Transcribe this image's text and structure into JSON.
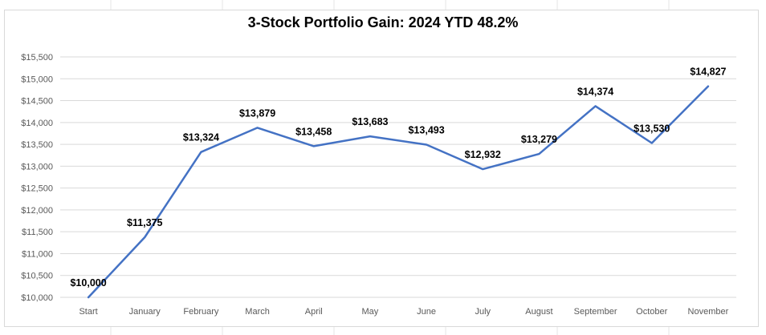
{
  "chart_data": {
    "type": "line",
    "title": "3-Stock Portfolio Gain: 2024 YTD 48.2%",
    "xlabel": "",
    "ylabel": "",
    "categories": [
      "Start",
      "January",
      "February",
      "March",
      "April",
      "May",
      "June",
      "July",
      "August",
      "September",
      "October",
      "November"
    ],
    "series": [
      {
        "values": [
          10000,
          11375,
          13324,
          13879,
          13458,
          13683,
          13493,
          12932,
          13279,
          14374,
          13530,
          14827
        ],
        "labels": [
          "$10,000",
          "$11,375",
          "$13,324",
          "$13,879",
          "$13,458",
          "$13,683",
          "$13,493",
          "$12,932",
          "$13,279",
          "$14,374",
          "$13,530",
          "$14,827"
        ],
        "color": "#4472c4"
      }
    ],
    "ylim": [
      10000,
      15500
    ],
    "yticks": [
      10000,
      10500,
      11000,
      11500,
      12000,
      12500,
      13000,
      13500,
      14000,
      14500,
      15000,
      15500
    ],
    "ytick_labels": [
      "$10,000",
      "$10,500",
      "$11,000",
      "$11,500",
      "$12,000",
      "$12,500",
      "$13,000",
      "$13,500",
      "$14,000",
      "$14,500",
      "$15,000",
      "$15,500"
    ],
    "grid": true,
    "gridline_color": "#d9d9d9",
    "legend": "none"
  }
}
